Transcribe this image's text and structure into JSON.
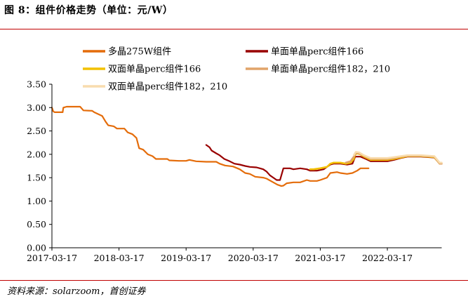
{
  "figure": {
    "title": "图 8：组件价格走势（单位：元/W）",
    "source": "资料来源：solarzoom，首创证券"
  },
  "chart_data": {
    "type": "line",
    "title": "组件价格走势（单位：元/W）",
    "xlabel": "",
    "ylabel": "",
    "ylim": [
      0,
      3.5
    ],
    "yticks": [
      "0.00",
      "0.50",
      "1.00",
      "1.50",
      "2.00",
      "2.50",
      "3.00",
      "3.50"
    ],
    "xlim": [
      0,
      5.81
    ],
    "xticks": [
      {
        "x": 0,
        "label": "2017-03-17"
      },
      {
        "x": 1,
        "label": "2018-03-17"
      },
      {
        "x": 2,
        "label": "2019-03-17"
      },
      {
        "x": 3,
        "label": "2020-03-17"
      },
      {
        "x": 4,
        "label": "2021-03-17"
      },
      {
        "x": 5,
        "label": "2022-03-17"
      }
    ],
    "x_unit": "years since 2017-03-17",
    "legend_position": "top",
    "grid": false,
    "series": [
      {
        "name": "多晶275W组件",
        "color": "#e46c0a",
        "width": 2.2,
        "points": [
          [
            0,
            3.0
          ],
          [
            0.02,
            2.92
          ],
          [
            0.04,
            2.9
          ],
          [
            0.08,
            2.9
          ],
          [
            0.16,
            2.9
          ],
          [
            0.17,
            3.0
          ],
          [
            0.22,
            3.02
          ],
          [
            0.3,
            3.02
          ],
          [
            0.42,
            3.02
          ],
          [
            0.47,
            2.94
          ],
          [
            0.6,
            2.93
          ],
          [
            0.63,
            2.9
          ],
          [
            0.75,
            2.82
          ],
          [
            0.8,
            2.7
          ],
          [
            0.84,
            2.62
          ],
          [
            0.92,
            2.6
          ],
          [
            0.97,
            2.55
          ],
          [
            1.08,
            2.55
          ],
          [
            1.13,
            2.47
          ],
          [
            1.2,
            2.43
          ],
          [
            1.26,
            2.35
          ],
          [
            1.3,
            2.13
          ],
          [
            1.36,
            2.1
          ],
          [
            1.43,
            2.0
          ],
          [
            1.5,
            1.96
          ],
          [
            1.55,
            1.9
          ],
          [
            1.72,
            1.9
          ],
          [
            1.75,
            1.87
          ],
          [
            1.9,
            1.86
          ],
          [
            2.0,
            1.86
          ],
          [
            2.05,
            1.88
          ],
          [
            2.15,
            1.85
          ],
          [
            2.3,
            1.84
          ],
          [
            2.45,
            1.84
          ],
          [
            2.5,
            1.8
          ],
          [
            2.58,
            1.76
          ],
          [
            2.7,
            1.74
          ],
          [
            2.8,
            1.68
          ],
          [
            2.88,
            1.6
          ],
          [
            2.95,
            1.58
          ],
          [
            3.03,
            1.52
          ],
          [
            3.15,
            1.5
          ],
          [
            3.2,
            1.48
          ],
          [
            3.3,
            1.4
          ],
          [
            3.36,
            1.35
          ],
          [
            3.42,
            1.32
          ],
          [
            3.45,
            1.33
          ],
          [
            3.5,
            1.38
          ],
          [
            3.6,
            1.4
          ],
          [
            3.7,
            1.4
          ],
          [
            3.8,
            1.45
          ],
          [
            3.85,
            1.43
          ],
          [
            3.95,
            1.43
          ],
          [
            4.0,
            1.45
          ],
          [
            4.1,
            1.5
          ],
          [
            4.15,
            1.6
          ],
          [
            4.25,
            1.62
          ],
          [
            4.3,
            1.6
          ],
          [
            4.4,
            1.58
          ],
          [
            4.48,
            1.6
          ],
          [
            4.55,
            1.65
          ],
          [
            4.6,
            1.7
          ],
          [
            4.72,
            1.7
          ]
        ]
      },
      {
        "name": "单面单晶perc组件166",
        "color": "#990000",
        "width": 2.2,
        "points": [
          [
            2.3,
            2.2
          ],
          [
            2.35,
            2.15
          ],
          [
            2.38,
            2.08
          ],
          [
            2.45,
            2.02
          ],
          [
            2.5,
            1.98
          ],
          [
            2.57,
            1.9
          ],
          [
            2.65,
            1.85
          ],
          [
            2.72,
            1.8
          ],
          [
            2.8,
            1.78
          ],
          [
            2.88,
            1.75
          ],
          [
            2.95,
            1.73
          ],
          [
            3.05,
            1.72
          ],
          [
            3.1,
            1.7
          ],
          [
            3.15,
            1.68
          ],
          [
            3.2,
            1.63
          ],
          [
            3.25,
            1.55
          ],
          [
            3.3,
            1.5
          ],
          [
            3.35,
            1.45
          ],
          [
            3.4,
            1.45
          ],
          [
            3.45,
            1.7
          ],
          [
            3.55,
            1.7
          ],
          [
            3.6,
            1.68
          ],
          [
            3.7,
            1.7
          ],
          [
            3.8,
            1.68
          ],
          [
            3.85,
            1.65
          ],
          [
            3.95,
            1.65
          ],
          [
            4.05,
            1.68
          ],
          [
            4.15,
            1.78
          ],
          [
            4.2,
            1.8
          ],
          [
            4.3,
            1.8
          ],
          [
            4.4,
            1.78
          ],
          [
            4.48,
            1.8
          ],
          [
            4.52,
            1.95
          ],
          [
            4.6,
            1.95
          ],
          [
            4.68,
            1.9
          ],
          [
            4.75,
            1.85
          ],
          [
            5.0,
            1.85
          ],
          [
            5.1,
            1.88
          ],
          [
            5.2,
            1.92
          ],
          [
            5.3,
            1.95
          ],
          [
            5.5,
            1.95
          ],
          [
            5.7,
            1.93
          ],
          [
            5.78,
            1.8
          ]
        ]
      },
      {
        "name": "双面单晶perc组件166",
        "color": "#f2c000",
        "width": 2.6,
        "points": [
          [
            3.85,
            1.68
          ],
          [
            3.9,
            1.68
          ],
          [
            4.0,
            1.7
          ],
          [
            4.1,
            1.73
          ],
          [
            4.15,
            1.8
          ],
          [
            4.2,
            1.82
          ],
          [
            4.3,
            1.82
          ],
          [
            4.38,
            1.8
          ],
          [
            4.45,
            1.82
          ],
          [
            4.5,
            1.9
          ],
          [
            4.52,
            2.0
          ],
          [
            4.55,
            2.02
          ],
          [
            4.6,
            2.0
          ],
          [
            4.65,
            1.95
          ],
          [
            4.75,
            1.88
          ],
          [
            5.0,
            1.88
          ],
          [
            5.1,
            1.9
          ],
          [
            5.2,
            1.93
          ],
          [
            5.3,
            1.96
          ],
          [
            5.5,
            1.96
          ],
          [
            5.7,
            1.94
          ],
          [
            5.78,
            1.8
          ]
        ]
      },
      {
        "name": "单面单晶perc组件182，210",
        "color": "#e1a46a",
        "width": 2.6,
        "points": [
          [
            4.38,
            1.82
          ],
          [
            4.45,
            1.85
          ],
          [
            4.5,
            1.95
          ],
          [
            4.53,
            2.03
          ],
          [
            4.58,
            2.02
          ],
          [
            4.65,
            1.97
          ],
          [
            4.75,
            1.9
          ],
          [
            5.0,
            1.9
          ],
          [
            5.1,
            1.92
          ],
          [
            5.2,
            1.95
          ],
          [
            5.3,
            1.97
          ],
          [
            5.5,
            1.97
          ],
          [
            5.7,
            1.95
          ],
          [
            5.78,
            1.8
          ],
          [
            5.81,
            1.8
          ]
        ]
      },
      {
        "name": "双面单晶perc组件182，210",
        "color": "#f8dcae",
        "width": 2.6,
        "points": [
          [
            4.5,
            1.98
          ],
          [
            4.53,
            2.05
          ],
          [
            4.58,
            2.04
          ],
          [
            4.65,
            1.98
          ],
          [
            4.75,
            1.92
          ],
          [
            5.0,
            1.92
          ],
          [
            5.1,
            1.94
          ],
          [
            5.2,
            1.96
          ],
          [
            5.3,
            1.98
          ],
          [
            5.5,
            1.98
          ],
          [
            5.7,
            1.96
          ],
          [
            5.78,
            1.82
          ],
          [
            5.81,
            1.82
          ]
        ]
      }
    ]
  }
}
